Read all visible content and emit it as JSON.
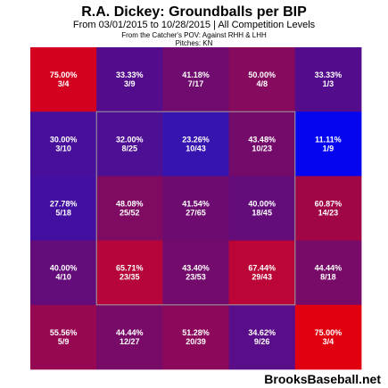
{
  "chart": {
    "title": "R.A. Dickey: Groundballs per BIP",
    "subtitle": "From 03/01/2015 to 10/28/2015 | All Competition Levels",
    "pov": "From the Catcher's POV:  Against RHH & LHH",
    "pitches": "Pitches:  KN"
  },
  "watermark": "BrooksBaseball.net",
  "chart_data": {
    "type": "heatmap",
    "title": "R.A. Dickey: Groundballs per BIP",
    "rows": 5,
    "cols": 5,
    "cells": [
      [
        {
          "pct": "75.00%",
          "count": "3/4",
          "color": "#d40020"
        },
        {
          "pct": "33.33%",
          "count": "3/9",
          "color": "#530c8c"
        },
        {
          "pct": "41.18%",
          "count": "7/17",
          "color": "#700b6f"
        },
        {
          "pct": "50.00%",
          "count": "4/8",
          "color": "#860a5e"
        },
        {
          "pct": "33.33%",
          "count": "1/3",
          "color": "#530c8c"
        }
      ],
      [
        {
          "pct": "30.00%",
          "count": "3/10",
          "color": "#48109a"
        },
        {
          "pct": "32.00%",
          "count": "8/25",
          "color": "#4d0f93"
        },
        {
          "pct": "23.26%",
          "count": "10/43",
          "color": "#3514b0"
        },
        {
          "pct": "43.48%",
          "count": "10/23",
          "color": "#740b6b"
        },
        {
          "pct": "11.11%",
          "count": "1/9",
          "color": "#0505f0"
        }
      ],
      [
        {
          "pct": "27.78%",
          "count": "5/18",
          "color": "#420fa0"
        },
        {
          "pct": "48.08%",
          "count": "25/52",
          "color": "#7e0a62"
        },
        {
          "pct": "41.54%",
          "count": "27/65",
          "color": "#6d0b70"
        },
        {
          "pct": "40.00%",
          "count": "18/45",
          "color": "#640c7a"
        },
        {
          "pct": "60.87%",
          "count": "14/23",
          "color": "#a00645"
        }
      ],
      [
        {
          "pct": "40.00%",
          "count": "4/10",
          "color": "#640c7a"
        },
        {
          "pct": "65.71%",
          "count": "23/35",
          "color": "#b5053a"
        },
        {
          "pct": "43.40%",
          "count": "23/53",
          "color": "#730b6d"
        },
        {
          "pct": "67.44%",
          "count": "29/43",
          "color": "#bb0536"
        },
        {
          "pct": "44.44%",
          "count": "8/18",
          "color": "#780b68"
        }
      ],
      [
        {
          "pct": "55.56%",
          "count": "5/9",
          "color": "#960852"
        },
        {
          "pct": "44.44%",
          "count": "12/27",
          "color": "#780b68"
        },
        {
          "pct": "51.28%",
          "count": "20/39",
          "color": "#8c085a"
        },
        {
          "pct": "34.62%",
          "count": "9/26",
          "color": "#5a0d88"
        },
        {
          "pct": "75.00%",
          "count": "3/4",
          "color": "#e00010"
        }
      ]
    ]
  }
}
